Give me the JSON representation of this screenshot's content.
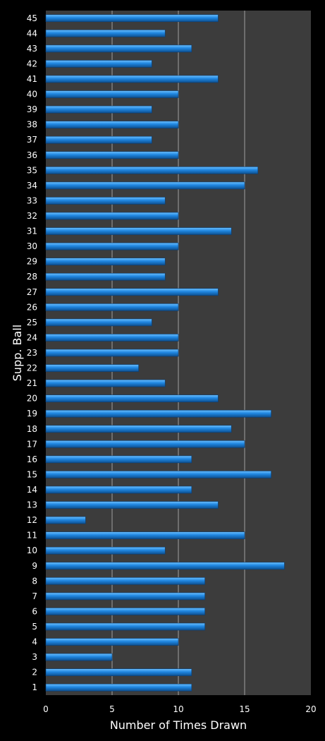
{
  "chart_data": {
    "type": "bar",
    "orientation": "horizontal",
    "title": "",
    "xlabel": "Number of Times Drawn",
    "ylabel": "Supp. Ball",
    "xlim": [
      0,
      20
    ],
    "xticks": [
      "0",
      "5",
      "10",
      "15",
      "20"
    ],
    "grid": true,
    "legend": "none",
    "colors": {
      "background": "#000000",
      "plot_area": "#3c3c3c",
      "bar_fill": "#1f7fd6",
      "bar_highlight": "#5ab4ff",
      "bar_shadow": "#0d4f8f",
      "gridline": "#a0a0a0",
      "text": "#ffffff"
    },
    "categories": [
      "1",
      "2",
      "3",
      "4",
      "5",
      "6",
      "7",
      "8",
      "9",
      "10",
      "11",
      "12",
      "13",
      "14",
      "15",
      "16",
      "17",
      "18",
      "19",
      "20",
      "21",
      "22",
      "23",
      "24",
      "25",
      "26",
      "27",
      "28",
      "29",
      "30",
      "31",
      "32",
      "33",
      "34",
      "35",
      "36",
      "37",
      "38",
      "39",
      "40",
      "41",
      "42",
      "43",
      "44",
      "45"
    ],
    "values": [
      11,
      11,
      5,
      10,
      12,
      12,
      12,
      12,
      18,
      9,
      15,
      3,
      13,
      11,
      17,
      11,
      15,
      14,
      17,
      13,
      9,
      7,
      10,
      10,
      8,
      10,
      13,
      9,
      9,
      10,
      14,
      10,
      9,
      15,
      16,
      10,
      8,
      10,
      8,
      10,
      13,
      8,
      11,
      9,
      13
    ]
  }
}
